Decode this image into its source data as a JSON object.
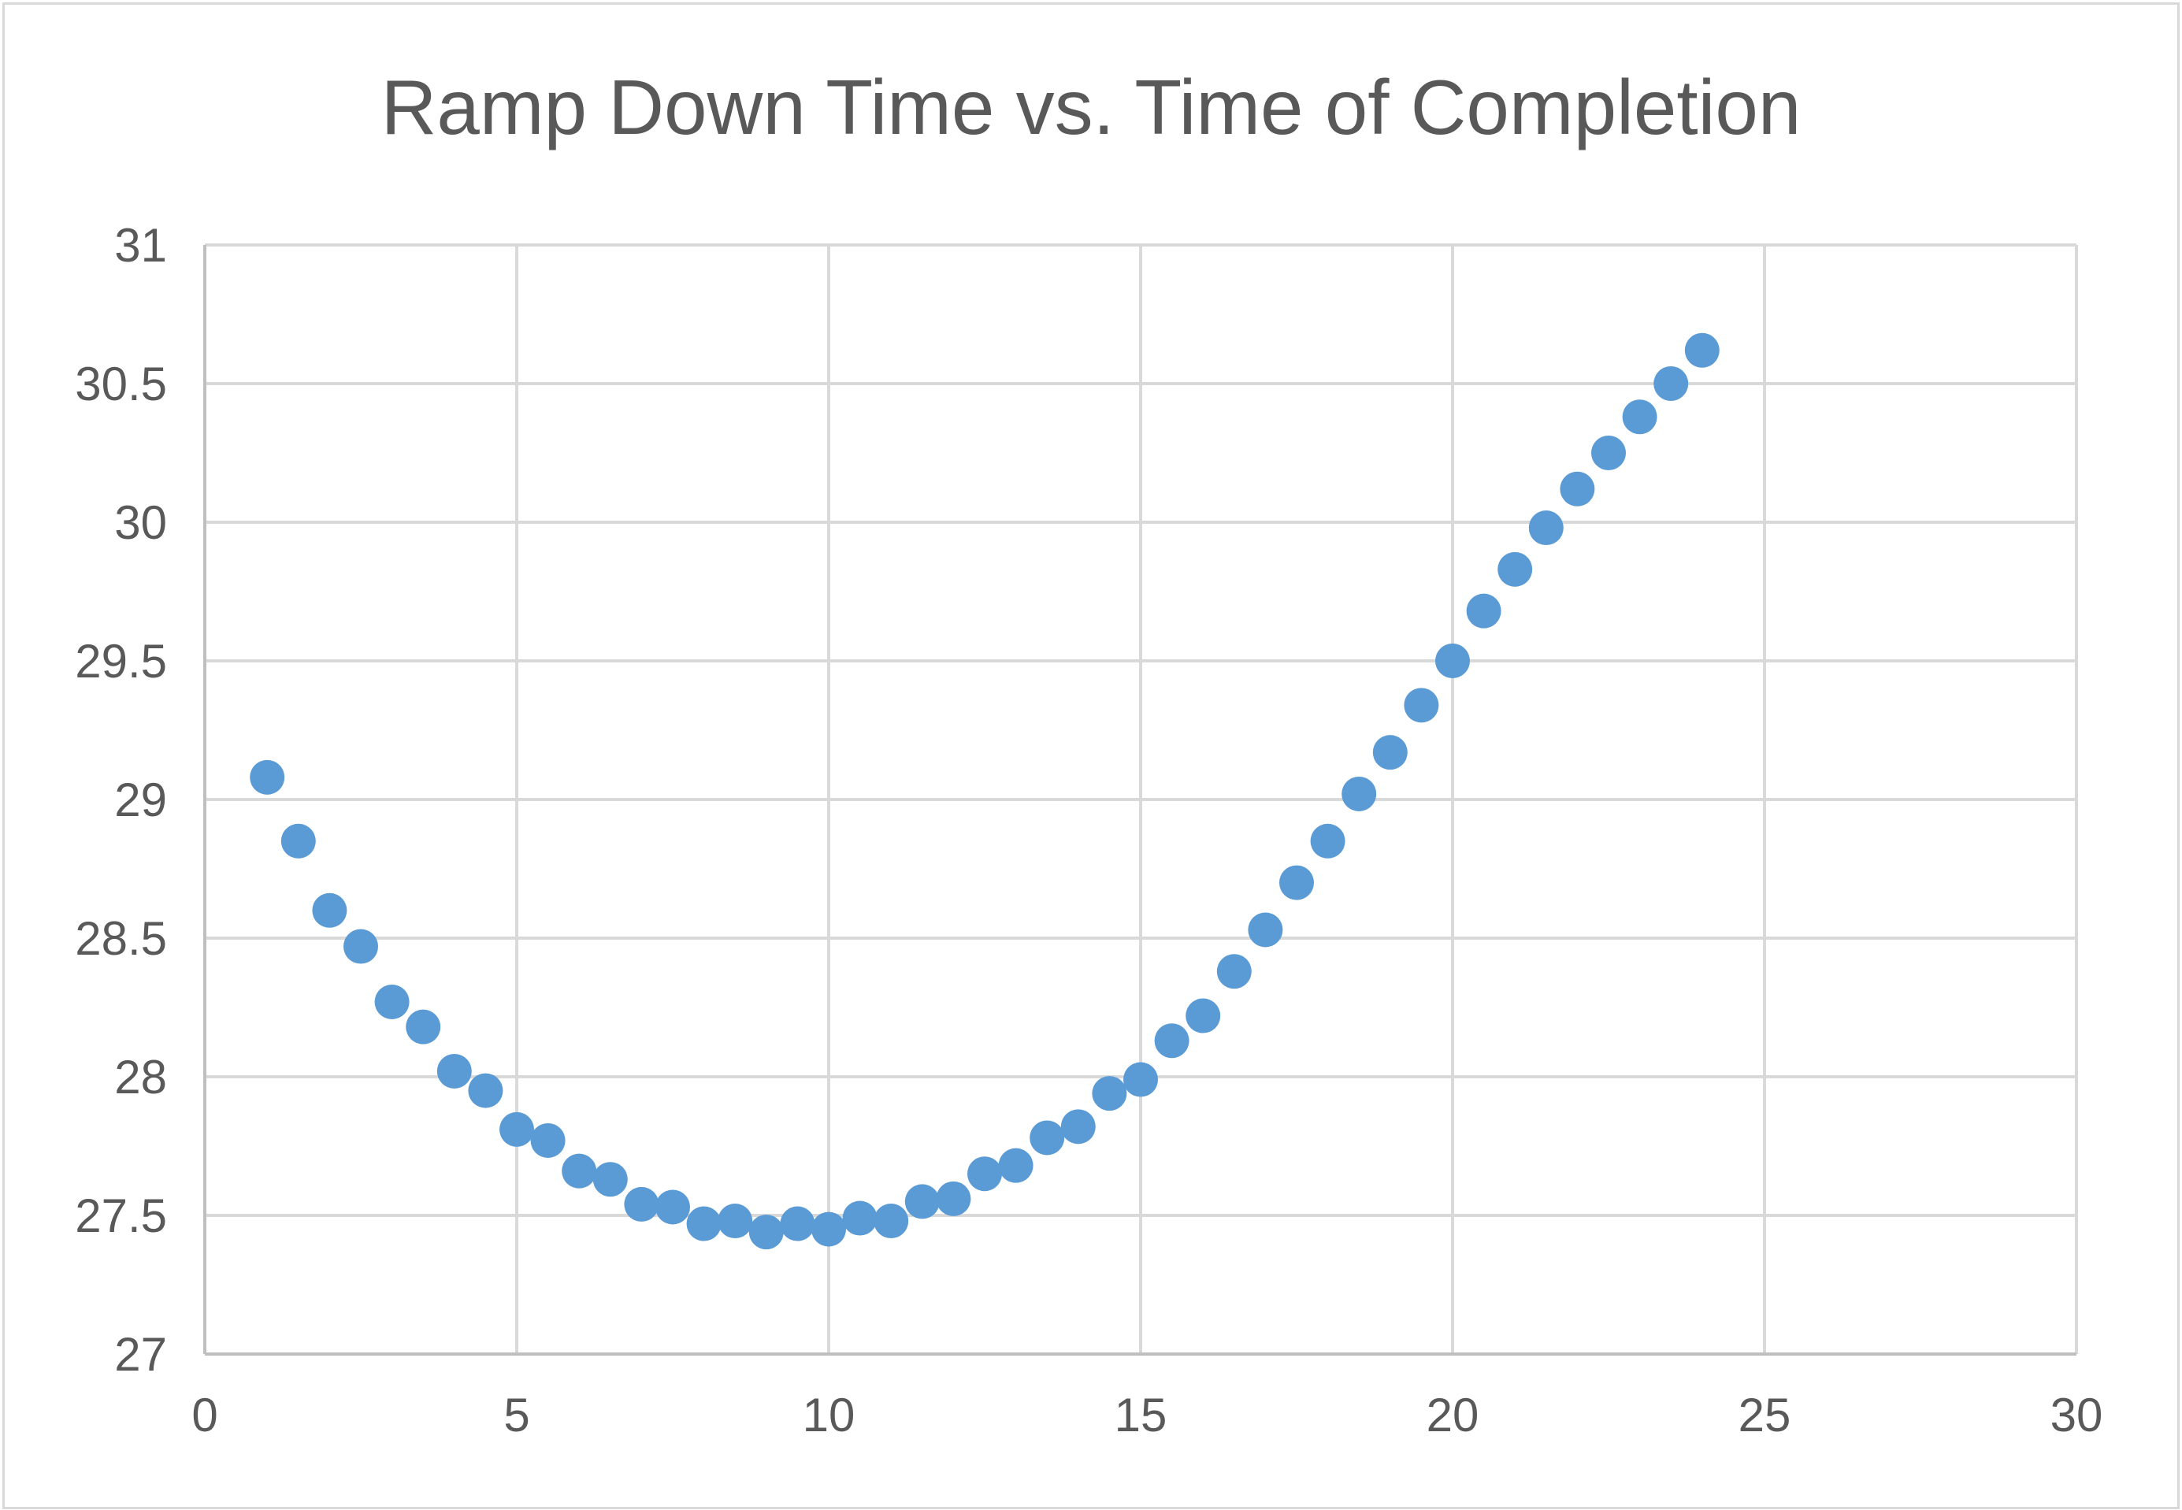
{
  "chart_data": {
    "type": "scatter",
    "title": "Ramp Down Time vs. Time of Completion",
    "xlabel": "",
    "ylabel": "",
    "xlim": [
      0,
      30
    ],
    "ylim": [
      27,
      31
    ],
    "xticks": [
      0,
      5,
      10,
      15,
      20,
      25,
      30
    ],
    "yticks": [
      27,
      27.5,
      28,
      28.5,
      29,
      29.5,
      30,
      30.5,
      31
    ],
    "grid": true,
    "legend": "none",
    "marker_color": "#5b9bd5",
    "series": [
      {
        "x": [
          1,
          1.5,
          2,
          2.5,
          3,
          3.5,
          4,
          4.5,
          5,
          5.5,
          6,
          6.5,
          7,
          7.5,
          8,
          8.5,
          9,
          9.5,
          10,
          10.5,
          11,
          11.5,
          12,
          12.5,
          13,
          13.5,
          14,
          14.5,
          15,
          15.5,
          16,
          16.5,
          17,
          17.5,
          18,
          18.5,
          19,
          19.5,
          20,
          20.5,
          21,
          21.5,
          22,
          22.5,
          23,
          23.5,
          24
        ],
        "y": [
          29.08,
          28.85,
          28.6,
          28.47,
          28.27,
          28.18,
          28.02,
          27.95,
          27.81,
          27.77,
          27.66,
          27.63,
          27.54,
          27.53,
          27.47,
          27.48,
          27.44,
          27.47,
          27.45,
          27.49,
          27.48,
          27.55,
          27.56,
          27.65,
          27.68,
          27.78,
          27.82,
          27.94,
          27.99,
          28.13,
          28.22,
          28.38,
          28.53,
          28.7,
          28.85,
          29.02,
          29.17,
          29.34,
          29.5,
          29.68,
          29.83,
          29.98,
          30.12,
          30.25,
          30.38,
          30.5,
          30.62
        ]
      }
    ]
  }
}
